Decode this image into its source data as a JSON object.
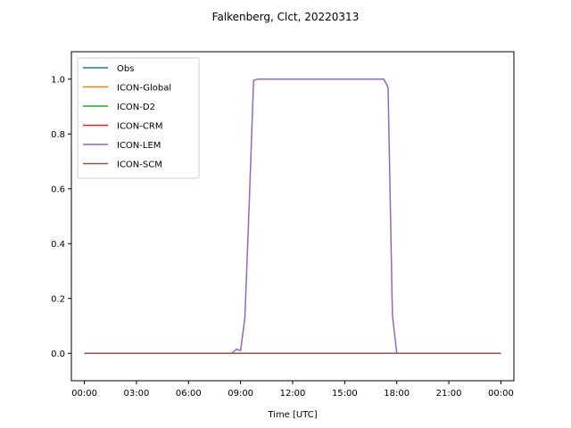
{
  "chart_data": {
    "type": "line",
    "title": "Falkenberg, Clct, 20220313",
    "xlabel": "Time [UTC]",
    "ylabel": "",
    "xlim": [
      -0.75,
      24.75
    ],
    "ylim": [
      -0.1,
      1.1
    ],
    "x_ticks": [
      0,
      3,
      6,
      9,
      12,
      15,
      18,
      21,
      24
    ],
    "x_tick_labels": [
      "00:00",
      "03:00",
      "06:00",
      "09:00",
      "12:00",
      "15:00",
      "18:00",
      "21:00",
      "00:00"
    ],
    "y_ticks": [
      0.0,
      0.2,
      0.4,
      0.6,
      0.8,
      1.0
    ],
    "y_tick_labels": [
      "0.0",
      "0.2",
      "0.4",
      "0.6",
      "0.8",
      "1.0"
    ],
    "grid": false,
    "legend_position": "top-left",
    "series": [
      {
        "name": "Obs",
        "color": "#1f77b4",
        "x": [
          0,
          24
        ],
        "y": [
          0,
          0
        ]
      },
      {
        "name": "ICON-Global",
        "color": "#ff7f0e",
        "x": [
          0,
          24
        ],
        "y": [
          0,
          0
        ]
      },
      {
        "name": "ICON-D2",
        "color": "#2ca02c",
        "x": [
          0,
          24
        ],
        "y": [
          0,
          0
        ]
      },
      {
        "name": "ICON-CRM",
        "color": "#d62728",
        "x": [
          0,
          24
        ],
        "y": [
          0,
          0
        ]
      },
      {
        "name": "ICON-LEM",
        "color": "#9467bd",
        "x": [
          0,
          8.5,
          8.75,
          9.0,
          9.25,
          9.5,
          9.75,
          10.0,
          10.5,
          12,
          15,
          17.25,
          17.5,
          17.75,
          18.0,
          18.25,
          24
        ],
        "y": [
          0,
          0,
          0.015,
          0.01,
          0.13,
          0.55,
          0.995,
          1.0,
          1.0,
          1.0,
          1.0,
          1.0,
          0.97,
          0.14,
          0.0,
          0.0,
          0
        ]
      },
      {
        "name": "ICON-SCM",
        "color": "#8c564b",
        "x": [
          0,
          24
        ],
        "y": [
          0,
          0
        ]
      }
    ]
  }
}
